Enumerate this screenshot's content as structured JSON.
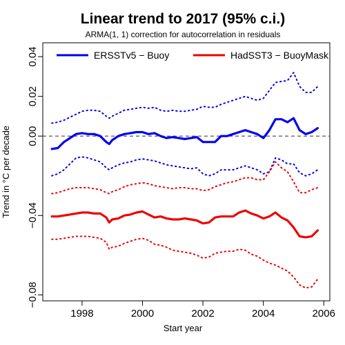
{
  "chart_data": {
    "type": "line",
    "title": "Linear trend to 2017 (95% c.i.)",
    "subtitle": "ARMA(1, 1) correction for autocorrelation in residuals",
    "xlabel": "Start year",
    "ylabel": "Trend in °C per decade",
    "xlim": [
      1996.7,
      2006.2
    ],
    "ylim": [
      -0.083,
      0.047
    ],
    "x_ticks": [
      1998,
      2000,
      2002,
      2004,
      2006
    ],
    "y_ticks": [
      -0.08,
      -0.04,
      0.0,
      0.02,
      0.04
    ],
    "x_tick_labels": [
      "1998",
      "2000",
      "2002",
      "2004",
      "2006"
    ],
    "y_tick_labels": [
      "−0.08",
      "−0.04",
      "0.00",
      "0.02",
      "0.04"
    ],
    "reference_line": {
      "y": 0,
      "style": "dashed",
      "color": "#555555"
    },
    "legend": {
      "placement": "top"
    },
    "series": [
      {
        "name": "ERSSTv5 − Buoy",
        "color": "#0000ee",
        "style": "solid",
        "show_in_legend": true,
        "x": [
          1997.0,
          1997.2,
          1997.4,
          1997.6,
          1997.8,
          1998.0,
          1998.2,
          1998.4,
          1998.6,
          1998.8,
          1998.9,
          1999.0,
          1999.2,
          1999.4,
          1999.6,
          1999.8,
          2000.0,
          2000.2,
          2000.4,
          2000.6,
          2000.8,
          2001.0,
          2001.2,
          2001.4,
          2001.6,
          2001.8,
          2002.0,
          2002.2,
          2002.4,
          2002.6,
          2002.8,
          2003.0,
          2003.2,
          2003.4,
          2003.6,
          2003.8,
          2004.0,
          2004.2,
          2004.4,
          2004.6,
          2004.8,
          2005.0,
          2005.2,
          2005.4,
          2005.6,
          2005.8
        ],
        "values": [
          -0.0065,
          -0.006,
          -0.003,
          -0.001,
          0.001,
          0.0015,
          0.001,
          0.001,
          0.0,
          -0.003,
          -0.004,
          -0.002,
          0.0,
          0.001,
          0.0015,
          0.002,
          0.002,
          0.001,
          0.0015,
          0.0,
          -0.001,
          -0.0005,
          -0.001,
          -0.0015,
          -0.001,
          -0.0005,
          -0.003,
          -0.003,
          -0.003,
          0.0,
          0.0,
          0.001,
          0.002,
          0.003,
          0.002,
          0.001,
          -0.001,
          0.003,
          0.0085,
          0.0085,
          0.007,
          0.009,
          0.003,
          0.001,
          0.002,
          0.004
        ]
      },
      {
        "name": "ERSSTv5 − Buoy upper 95% c.i.",
        "color": "#0000ee",
        "style": "dotted",
        "show_in_legend": false,
        "x": [
          1997.0,
          1997.2,
          1997.4,
          1997.6,
          1997.8,
          1998.0,
          1998.2,
          1998.4,
          1998.6,
          1998.8,
          1998.9,
          1999.0,
          1999.2,
          1999.4,
          1999.6,
          1999.8,
          2000.0,
          2000.2,
          2000.4,
          2000.6,
          2000.8,
          2001.0,
          2001.2,
          2001.4,
          2001.6,
          2001.8,
          2002.0,
          2002.2,
          2002.4,
          2002.6,
          2002.8,
          2003.0,
          2003.2,
          2003.4,
          2003.6,
          2003.8,
          2004.0,
          2004.2,
          2004.4,
          2004.6,
          2004.8,
          2005.0,
          2005.2,
          2005.4,
          2005.6,
          2005.8
        ],
        "values": [
          0.0065,
          0.007,
          0.008,
          0.0095,
          0.011,
          0.0125,
          0.013,
          0.013,
          0.0125,
          0.01,
          0.009,
          0.01,
          0.0115,
          0.013,
          0.0135,
          0.014,
          0.0145,
          0.014,
          0.0145,
          0.013,
          0.0125,
          0.013,
          0.0125,
          0.0125,
          0.013,
          0.0135,
          0.015,
          0.0145,
          0.0145,
          0.016,
          0.017,
          0.018,
          0.019,
          0.02,
          0.019,
          0.018,
          0.019,
          0.023,
          0.027,
          0.0275,
          0.028,
          0.032,
          0.025,
          0.022,
          0.022,
          0.025
        ]
      },
      {
        "name": "ERSSTv5 − Buoy lower 95% c.i.",
        "color": "#0000ee",
        "style": "dotted",
        "show_in_legend": false,
        "x": [
          1997.0,
          1997.2,
          1997.4,
          1997.6,
          1997.8,
          1998.0,
          1998.2,
          1998.4,
          1998.6,
          1998.8,
          1998.9,
          1999.0,
          1999.2,
          1999.4,
          1999.6,
          1999.8,
          2000.0,
          2000.2,
          2000.4,
          2000.6,
          2000.8,
          2001.0,
          2001.2,
          2001.4,
          2001.6,
          2001.8,
          2002.0,
          2002.2,
          2002.4,
          2002.6,
          2002.8,
          2003.0,
          2003.2,
          2003.4,
          2003.6,
          2003.8,
          2004.0,
          2004.2,
          2004.4,
          2004.6,
          2004.8,
          2005.0,
          2005.2,
          2005.4,
          2005.6,
          2005.8
        ],
        "values": [
          -0.02,
          -0.019,
          -0.017,
          -0.014,
          -0.011,
          -0.0105,
          -0.011,
          -0.012,
          -0.013,
          -0.016,
          -0.017,
          -0.016,
          -0.0145,
          -0.0135,
          -0.013,
          -0.012,
          -0.0115,
          -0.012,
          -0.0125,
          -0.0135,
          -0.0145,
          -0.015,
          -0.0155,
          -0.016,
          -0.0165,
          -0.016,
          -0.019,
          -0.02,
          -0.019,
          -0.017,
          -0.017,
          -0.017,
          -0.016,
          -0.015,
          -0.016,
          -0.017,
          -0.019,
          -0.018,
          -0.011,
          -0.012,
          -0.014,
          -0.014,
          -0.0185,
          -0.02,
          -0.019,
          -0.017
        ]
      },
      {
        "name": "HadSST3 − BuoyMask",
        "color": "#ee0000",
        "style": "solid",
        "show_in_legend": true,
        "x": [
          1997.0,
          1997.2,
          1997.4,
          1997.6,
          1997.8,
          1998.0,
          1998.2,
          1998.4,
          1998.6,
          1998.8,
          1998.9,
          1999.0,
          1999.2,
          1999.4,
          1999.6,
          1999.8,
          2000.0,
          2000.2,
          2000.4,
          2000.6,
          2000.8,
          2001.0,
          2001.2,
          2001.4,
          2001.6,
          2001.8,
          2002.0,
          2002.2,
          2002.4,
          2002.6,
          2002.8,
          2003.0,
          2003.2,
          2003.4,
          2003.6,
          2003.8,
          2004.0,
          2004.2,
          2004.4,
          2004.6,
          2004.8,
          2005.0,
          2005.2,
          2005.4,
          2005.6,
          2005.8
        ],
        "values": [
          -0.0405,
          -0.0405,
          -0.04,
          -0.0395,
          -0.039,
          -0.0385,
          -0.0385,
          -0.039,
          -0.039,
          -0.041,
          -0.0435,
          -0.042,
          -0.0415,
          -0.04,
          -0.0395,
          -0.0385,
          -0.038,
          -0.0395,
          -0.041,
          -0.0405,
          -0.0415,
          -0.042,
          -0.042,
          -0.0415,
          -0.042,
          -0.0425,
          -0.044,
          -0.0435,
          -0.041,
          -0.0405,
          -0.0405,
          -0.0405,
          -0.0385,
          -0.0375,
          -0.039,
          -0.04,
          -0.0415,
          -0.0405,
          -0.0385,
          -0.041,
          -0.0425,
          -0.046,
          -0.0505,
          -0.051,
          -0.0505,
          -0.0475
        ]
      },
      {
        "name": "HadSST3 − BuoyMask upper 95% c.i.",
        "color": "#ee0000",
        "style": "dotted",
        "show_in_legend": false,
        "x": [
          1997.0,
          1997.2,
          1997.4,
          1997.6,
          1997.8,
          1998.0,
          1998.2,
          1998.4,
          1998.6,
          1998.8,
          1998.9,
          1999.0,
          1999.2,
          1999.4,
          1999.6,
          1999.8,
          2000.0,
          2000.2,
          2000.4,
          2000.6,
          2000.8,
          2001.0,
          2001.2,
          2001.4,
          2001.6,
          2001.8,
          2002.0,
          2002.2,
          2002.4,
          2002.6,
          2002.8,
          2003.0,
          2003.2,
          2003.4,
          2003.6,
          2003.8,
          2004.0,
          2004.2,
          2004.4,
          2004.6,
          2004.8,
          2005.0,
          2005.2,
          2005.4,
          2005.6,
          2005.8
        ],
        "values": [
          -0.029,
          -0.0285,
          -0.0275,
          -0.0265,
          -0.026,
          -0.026,
          -0.026,
          -0.0265,
          -0.027,
          -0.0285,
          -0.029,
          -0.028,
          -0.027,
          -0.0255,
          -0.0245,
          -0.024,
          -0.0235,
          -0.024,
          -0.025,
          -0.0255,
          -0.026,
          -0.0265,
          -0.026,
          -0.026,
          -0.0265,
          -0.0265,
          -0.0275,
          -0.027,
          -0.0255,
          -0.0245,
          -0.0235,
          -0.023,
          -0.022,
          -0.021,
          -0.021,
          -0.022,
          -0.022,
          -0.018,
          -0.013,
          -0.016,
          -0.018,
          -0.023,
          -0.0285,
          -0.0285,
          -0.027,
          -0.026
        ]
      },
      {
        "name": "HadSST3 − BuoyMask lower 95% c.i.",
        "color": "#ee0000",
        "style": "dotted",
        "show_in_legend": false,
        "x": [
          1997.0,
          1997.2,
          1997.4,
          1997.6,
          1997.8,
          1998.0,
          1998.2,
          1998.4,
          1998.6,
          1998.8,
          1998.9,
          1999.0,
          1999.2,
          1999.4,
          1999.6,
          1999.8,
          2000.0,
          2000.2,
          2000.4,
          2000.6,
          2000.8,
          2001.0,
          2001.2,
          2001.4,
          2001.6,
          2001.8,
          2002.0,
          2002.2,
          2002.4,
          2002.6,
          2002.8,
          2003.0,
          2003.2,
          2003.4,
          2003.6,
          2003.8,
          2004.0,
          2004.2,
          2004.4,
          2004.6,
          2004.8,
          2005.0,
          2005.2,
          2005.4,
          2005.6,
          2005.8
        ],
        "values": [
          -0.052,
          -0.052,
          -0.0515,
          -0.051,
          -0.0505,
          -0.0505,
          -0.0505,
          -0.051,
          -0.0515,
          -0.0535,
          -0.057,
          -0.056,
          -0.0555,
          -0.054,
          -0.053,
          -0.052,
          -0.0515,
          -0.0525,
          -0.0545,
          -0.055,
          -0.056,
          -0.0575,
          -0.058,
          -0.0585,
          -0.059,
          -0.06,
          -0.0615,
          -0.061,
          -0.059,
          -0.0585,
          -0.058,
          -0.058,
          -0.057,
          -0.0575,
          -0.0595,
          -0.0605,
          -0.0625,
          -0.064,
          -0.065,
          -0.0665,
          -0.068,
          -0.071,
          -0.075,
          -0.0765,
          -0.076,
          -0.072
        ]
      }
    ]
  }
}
